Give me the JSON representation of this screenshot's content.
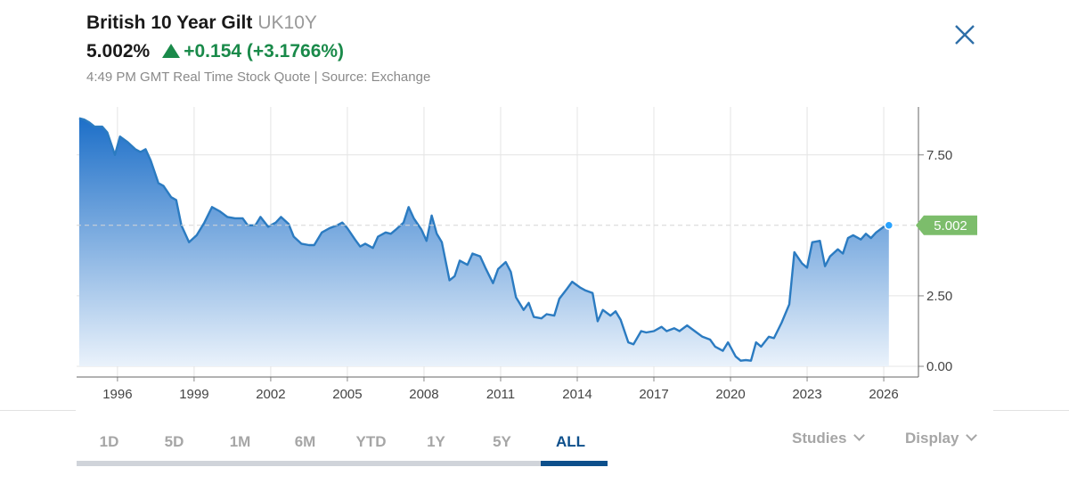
{
  "header": {
    "title": "British 10 Year Gilt",
    "symbol": "UK10Y",
    "last": "5.002%",
    "change": "+0.154 (+3.1766%)",
    "change_color": "#1a8a4a",
    "meta": "4:49 PM GMT Real Time Stock Quote | Source: Exchange",
    "close_icon": "close-icon",
    "close_color": "#2f6fa8"
  },
  "controls": {
    "ranges": [
      "1D",
      "5D",
      "1M",
      "6M",
      "YTD",
      "1Y",
      "5Y",
      "ALL"
    ],
    "active_range": "ALL",
    "studies_label": "Studies",
    "display_label": "Display"
  },
  "chart_data": {
    "type": "area",
    "line_color": "#2b7bc1",
    "fill_top_color": "#1d6fc8",
    "price_badge_color": "#7cbd6b",
    "x_ticks": [
      "1996",
      "1999",
      "2002",
      "2005",
      "2008",
      "2011",
      "2014",
      "2017",
      "2020",
      "2023",
      "2026"
    ],
    "y_ticks": [
      "0.00",
      "2.50",
      "7.50"
    ],
    "last_value_label": "5.002",
    "last_value": 5.002,
    "grid": true,
    "ylim": [
      0,
      9.2
    ],
    "xlim": [
      1994.4,
      2026.8
    ],
    "points": [
      [
        1994.5,
        8.8
      ],
      [
        1994.7,
        8.75
      ],
      [
        1994.9,
        8.65
      ],
      [
        1995.1,
        8.5
      ],
      [
        1995.4,
        8.5
      ],
      [
        1995.6,
        8.3
      ],
      [
        1995.9,
        7.5
      ],
      [
        1996.1,
        8.15
      ],
      [
        1996.4,
        7.95
      ],
      [
        1996.7,
        7.7
      ],
      [
        1996.9,
        7.6
      ],
      [
        1997.1,
        7.7
      ],
      [
        1997.3,
        7.3
      ],
      [
        1997.6,
        6.5
      ],
      [
        1997.8,
        6.4
      ],
      [
        1998.1,
        6.0
      ],
      [
        1998.3,
        5.9
      ],
      [
        1998.5,
        5.0
      ],
      [
        1998.8,
        4.4
      ],
      [
        1999.1,
        4.65
      ],
      [
        1999.4,
        5.1
      ],
      [
        1999.7,
        5.65
      ],
      [
        2000.0,
        5.5
      ],
      [
        2000.3,
        5.3
      ],
      [
        2000.6,
        5.25
      ],
      [
        2000.9,
        5.25
      ],
      [
        2001.1,
        5.0
      ],
      [
        2001.4,
        5.0
      ],
      [
        2001.6,
        5.3
      ],
      [
        2001.9,
        4.95
      ],
      [
        2002.2,
        5.1
      ],
      [
        2002.4,
        5.3
      ],
      [
        2002.7,
        5.05
      ],
      [
        2002.9,
        4.6
      ],
      [
        2003.2,
        4.35
      ],
      [
        2003.5,
        4.3
      ],
      [
        2003.7,
        4.3
      ],
      [
        2004.0,
        4.75
      ],
      [
        2004.3,
        4.9
      ],
      [
        2004.6,
        5.0
      ],
      [
        2004.8,
        5.1
      ],
      [
        2005.0,
        4.9
      ],
      [
        2005.3,
        4.5
      ],
      [
        2005.5,
        4.25
      ],
      [
        2005.7,
        4.35
      ],
      [
        2006.0,
        4.2
      ],
      [
        2006.2,
        4.6
      ],
      [
        2006.5,
        4.75
      ],
      [
        2006.7,
        4.7
      ],
      [
        2006.9,
        4.85
      ],
      [
        2007.2,
        5.1
      ],
      [
        2007.4,
        5.65
      ],
      [
        2007.6,
        5.25
      ],
      [
        2007.9,
        4.85
      ],
      [
        2008.1,
        4.45
      ],
      [
        2008.3,
        5.35
      ],
      [
        2008.5,
        4.7
      ],
      [
        2008.7,
        4.4
      ],
      [
        2009.0,
        3.05
      ],
      [
        2009.2,
        3.2
      ],
      [
        2009.4,
        3.75
      ],
      [
        2009.7,
        3.6
      ],
      [
        2009.9,
        4.0
      ],
      [
        2010.2,
        3.9
      ],
      [
        2010.4,
        3.5
      ],
      [
        2010.7,
        2.95
      ],
      [
        2010.9,
        3.45
      ],
      [
        2011.2,
        3.7
      ],
      [
        2011.4,
        3.35
      ],
      [
        2011.6,
        2.45
      ],
      [
        2011.9,
        2.0
      ],
      [
        2012.1,
        2.25
      ],
      [
        2012.3,
        1.75
      ],
      [
        2012.6,
        1.7
      ],
      [
        2012.8,
        1.85
      ],
      [
        2013.1,
        1.8
      ],
      [
        2013.3,
        2.4
      ],
      [
        2013.6,
        2.75
      ],
      [
        2013.8,
        3.0
      ],
      [
        2014.1,
        2.8
      ],
      [
        2014.3,
        2.7
      ],
      [
        2014.6,
        2.6
      ],
      [
        2014.8,
        1.6
      ],
      [
        2015.0,
        2.0
      ],
      [
        2015.3,
        1.8
      ],
      [
        2015.5,
        1.95
      ],
      [
        2015.7,
        1.65
      ],
      [
        2016.0,
        0.85
      ],
      [
        2016.2,
        0.78
      ],
      [
        2016.5,
        1.25
      ],
      [
        2016.7,
        1.2
      ],
      [
        2017.0,
        1.25
      ],
      [
        2017.3,
        1.4
      ],
      [
        2017.5,
        1.25
      ],
      [
        2017.8,
        1.35
      ],
      [
        2018.0,
        1.25
      ],
      [
        2018.3,
        1.45
      ],
      [
        2018.6,
        1.25
      ],
      [
        2018.9,
        1.05
      ],
      [
        2019.2,
        0.95
      ],
      [
        2019.4,
        0.7
      ],
      [
        2019.7,
        0.55
      ],
      [
        2019.9,
        0.85
      ],
      [
        2020.2,
        0.35
      ],
      [
        2020.4,
        0.2
      ],
      [
        2020.6,
        0.22
      ],
      [
        2020.8,
        0.2
      ],
      [
        2021.0,
        0.85
      ],
      [
        2021.2,
        0.7
      ],
      [
        2021.5,
        1.05
      ],
      [
        2021.7,
        1.0
      ],
      [
        2022.0,
        1.55
      ],
      [
        2022.3,
        2.2
      ],
      [
        2022.5,
        4.05
      ],
      [
        2022.8,
        3.65
      ],
      [
        2023.0,
        3.5
      ],
      [
        2023.2,
        4.4
      ],
      [
        2023.5,
        4.45
      ],
      [
        2023.7,
        3.55
      ],
      [
        2023.9,
        3.9
      ],
      [
        2024.2,
        4.15
      ],
      [
        2024.4,
        4.0
      ],
      [
        2024.6,
        4.55
      ],
      [
        2024.8,
        4.65
      ],
      [
        2025.1,
        4.5
      ],
      [
        2025.3,
        4.7
      ],
      [
        2025.5,
        4.55
      ],
      [
        2025.7,
        4.75
      ],
      [
        2026.0,
        4.95
      ],
      [
        2026.2,
        5.002
      ]
    ]
  }
}
